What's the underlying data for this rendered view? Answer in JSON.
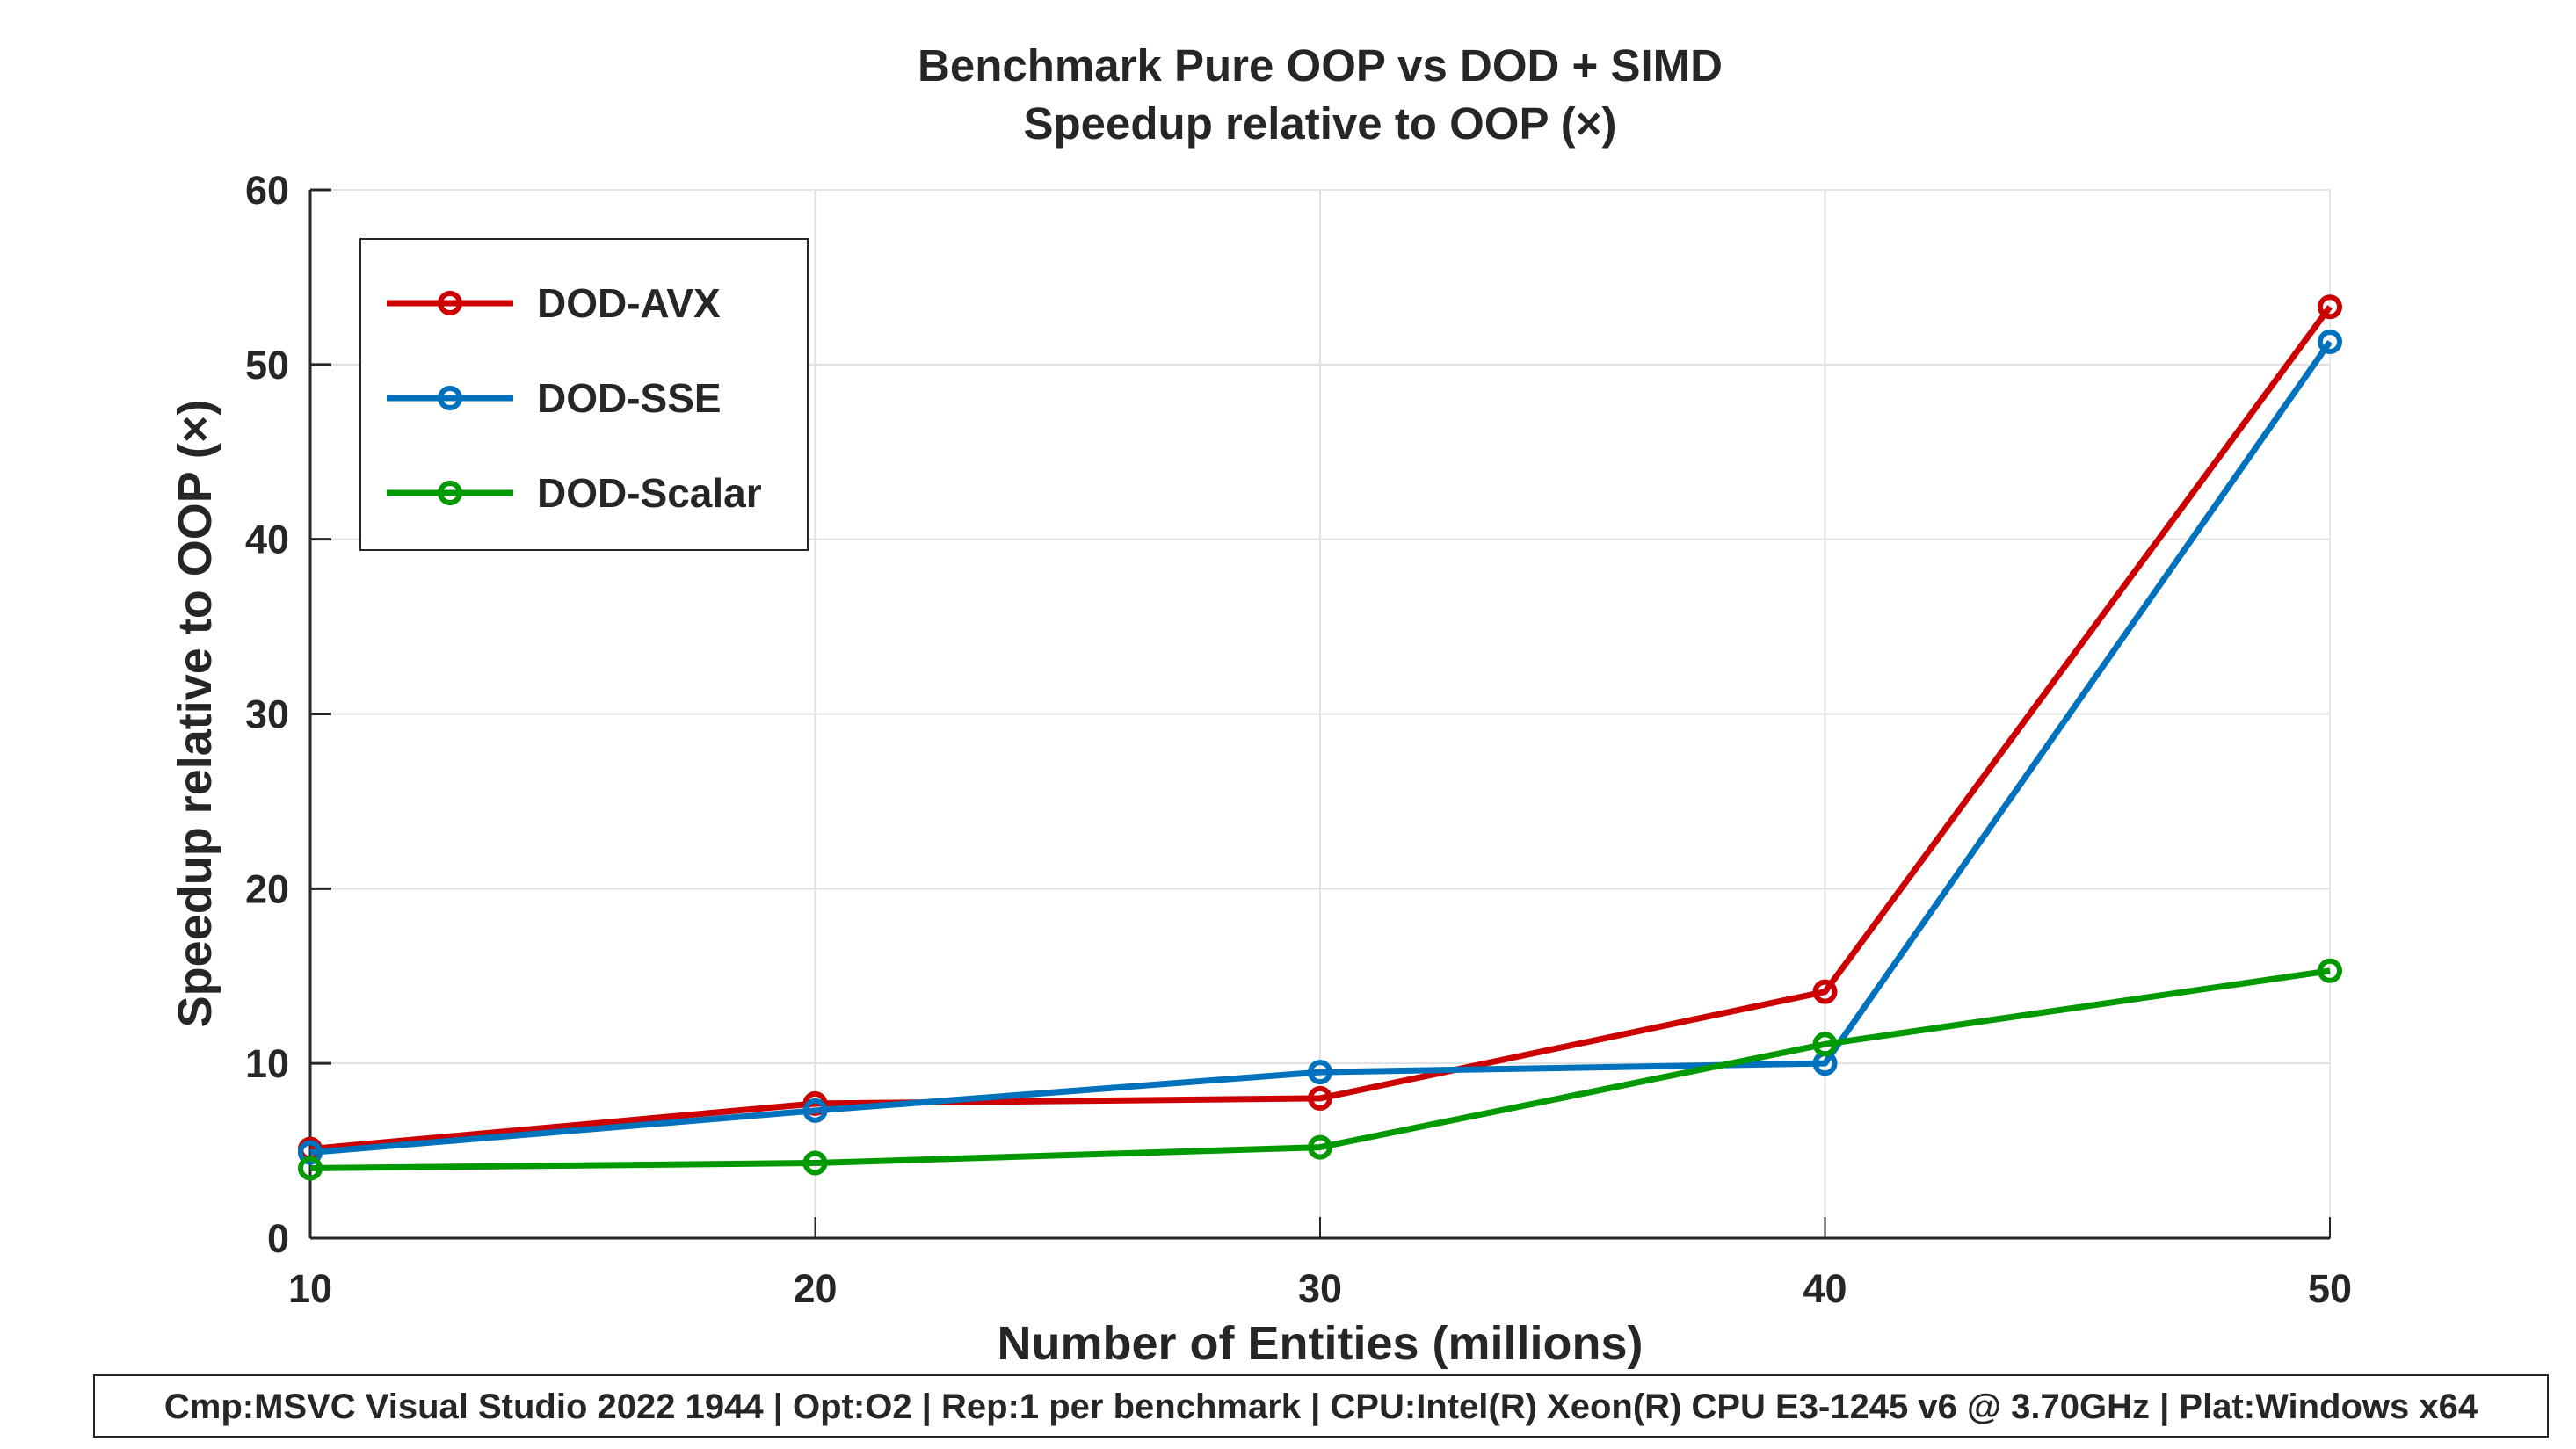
{
  "chart_data": {
    "type": "line",
    "title": "Benchmark Pure OOP vs DOD + SIMD",
    "subtitle": "Speedup relative to OOP (×)",
    "xlabel": "Number of Entities (millions)",
    "ylabel": "Speedup relative to OOP (×)",
    "x": [
      10,
      20,
      30,
      40,
      50
    ],
    "xlim": [
      10,
      50
    ],
    "ylim": [
      0,
      60
    ],
    "xticks": [
      10,
      20,
      30,
      40,
      50
    ],
    "yticks": [
      0,
      10,
      20,
      30,
      40,
      50,
      60
    ],
    "grid": true,
    "legend_position": "top-left",
    "series": [
      {
        "name": "DOD-AVX",
        "color": "#cc0000",
        "values": [
          5.1,
          7.7,
          8.0,
          14.1,
          53.3
        ]
      },
      {
        "name": "DOD-SSE",
        "color": "#0072bd",
        "values": [
          4.9,
          7.3,
          9.5,
          10.0,
          51.3
        ]
      },
      {
        "name": "DOD-Scalar",
        "color": "#009900",
        "values": [
          4.0,
          4.3,
          5.2,
          11.1,
          15.3
        ]
      }
    ],
    "footer": "Cmp:MSVC Visual Studio 2022 1944 | Opt:O2 | Rep:1 per benchmark | CPU:Intel(R) Xeon(R) CPU E3-1245 v6 @ 3.70GHz | Plat:Windows x64"
  }
}
